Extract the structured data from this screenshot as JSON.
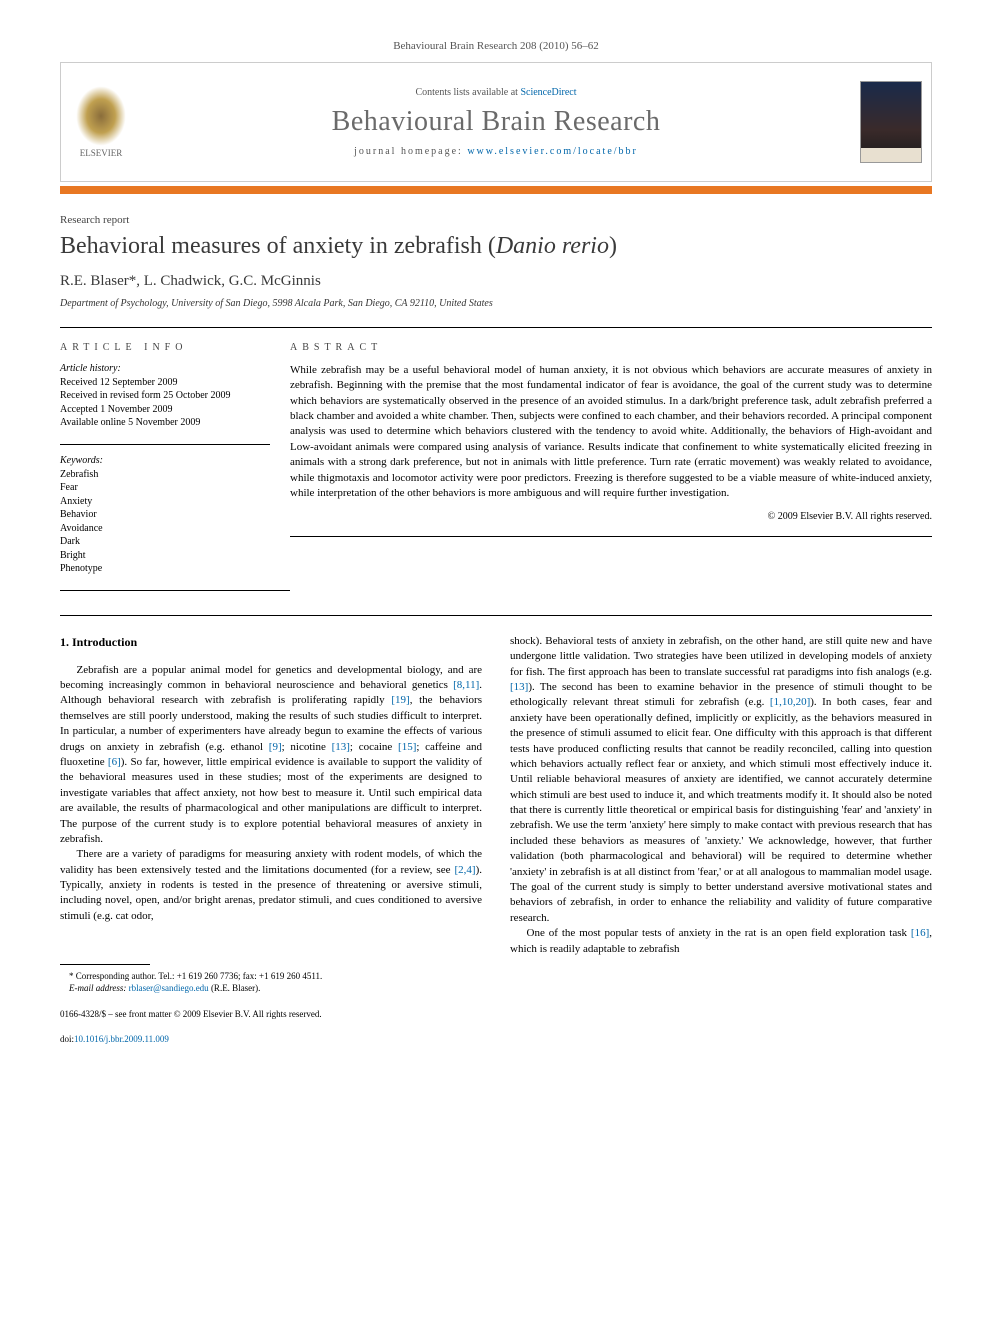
{
  "journal_header": "Behavioural Brain Research 208 (2010) 56–62",
  "header_box": {
    "elsevier": "ELSEVIER",
    "contents_prefix": "Contents lists available at ",
    "contents_link": "ScienceDirect",
    "journal_title": "Behavioural Brain Research",
    "homepage_prefix": "journal homepage: ",
    "homepage_link": "www.elsevier.com/locate/bbr"
  },
  "article_type": "Research report",
  "title_plain": "Behavioral measures of anxiety in zebrafish (",
  "title_italic": "Danio rerio",
  "title_close": ")",
  "authors": "R.E. Blaser*, L. Chadwick, G.C. McGinnis",
  "affiliation": "Department of Psychology, University of San Diego, 5998 Alcala Park, San Diego, CA 92110, United States",
  "labels": {
    "article_info": "article info",
    "abstract": "abstract",
    "history": "Article history:",
    "keywords": "Keywords:"
  },
  "history": {
    "received": "Received 12 September 2009",
    "revised": "Received in revised form 25 October 2009",
    "accepted": "Accepted 1 November 2009",
    "online": "Available online 5 November 2009"
  },
  "keywords": [
    "Zebrafish",
    "Fear",
    "Anxiety",
    "Behavior",
    "Avoidance",
    "Dark",
    "Bright",
    "Phenotype"
  ],
  "abstract": "While zebrafish may be a useful behavioral model of human anxiety, it is not obvious which behaviors are accurate measures of anxiety in zebrafish. Beginning with the premise that the most fundamental indicator of fear is avoidance, the goal of the current study was to determine which behaviors are systematically observed in the presence of an avoided stimulus. In a dark/bright preference task, adult zebrafish preferred a black chamber and avoided a white chamber. Then, subjects were confined to each chamber, and their behaviors recorded. A principal component analysis was used to determine which behaviors clustered with the tendency to avoid white. Additionally, the behaviors of High-avoidant and Low-avoidant animals were compared using analysis of variance. Results indicate that confinement to white systematically elicited freezing in animals with a strong dark preference, but not in animals with little preference. Turn rate (erratic movement) was weakly related to avoidance, while thigmotaxis and locomotor activity were poor predictors. Freezing is therefore suggested to be a viable measure of white-induced anxiety, while interpretation of the other behaviors is more ambiguous and will require further investigation.",
  "copyright": "© 2009 Elsevier B.V. All rights reserved.",
  "intro_heading": "1. Introduction",
  "col1": {
    "p1a": "Zebrafish are a popular animal model for genetics and developmental biology, and are becoming increasingly common in behavioral neuroscience and behavioral genetics ",
    "r1": "[8,11]",
    "p1b": ". Although behavioral research with zebrafish is proliferating rapidly ",
    "r2": "[19]",
    "p1c": ", the behaviors themselves are still poorly understood, making the results of such studies difficult to interpret. In particular, a number of experimenters have already begun to examine the effects of various drugs on anxiety in zebrafish (e.g. ethanol ",
    "r3": "[9]",
    "p1d": "; nicotine ",
    "r4": "[13]",
    "p1e": "; cocaine ",
    "r5": "[15]",
    "p1f": "; caffeine and fluoxetine ",
    "r6": "[6]",
    "p1g": "). So far, however, little empirical evidence is available to support the validity of the behavioral measures used in these studies; most of the experiments are designed to investigate variables that affect anxiety, not how best to measure it. Until such empirical data are available, the results of pharmacological and other manipulations are difficult to interpret. The purpose of the current study is to explore potential behavioral measures of anxiety in zebrafish.",
    "p2a": "There are a variety of paradigms for measuring anxiety with rodent models, of which the validity has been extensively tested and the limitations documented (for a review, see ",
    "r7": "[2,4]",
    "p2b": "). Typically, anxiety in rodents is tested in the presence of threatening or aversive stimuli, including novel, open, and/or bright arenas, predator stimuli, and cues conditioned to aversive stimuli (e.g. cat odor,"
  },
  "col2": {
    "p1a": "shock). Behavioral tests of anxiety in zebrafish, on the other hand, are still quite new and have undergone little validation. Two strategies have been utilized in developing models of anxiety for fish. The first approach has been to translate successful rat paradigms into fish analogs (e.g. ",
    "r1": "[13]",
    "p1b": "). The second has been to examine behavior in the presence of stimuli thought to be ethologically relevant threat stimuli for zebrafish (e.g. ",
    "r2": "[1,10,20]",
    "p1c": "). In both cases, fear and anxiety have been operationally defined, implicitly or explicitly, as the behaviors measured in the presence of stimuli assumed to elicit fear. One difficulty with this approach is that different tests have produced conflicting results that cannot be readily reconciled, calling into question which behaviors actually reflect fear or anxiety, and which stimuli most effectively induce it. Until reliable behavioral measures of anxiety are identified, we cannot accurately determine which stimuli are best used to induce it, and which treatments modify it. It should also be noted that there is currently little theoretical or empirical basis for distinguishing 'fear' and 'anxiety' in zebrafish. We use the term 'anxiety' here simply to make contact with previous research that has included these behaviors as measures of 'anxiety.' We acknowledge, however, that further validation (both pharmacological and behavioral) will be required to determine whether 'anxiety' in zebrafish is at all distinct from 'fear,' or at all analogous to mammalian model usage. The goal of the current study is simply to better understand aversive motivational states and behaviors of zebrafish, in order to enhance the reliability and validity of future comparative research.",
    "p2a": "One of the most popular tests of anxiety in the rat is an open field exploration task ",
    "r3": "[16]",
    "p2b": ", which is readily adaptable to zebrafish"
  },
  "footnote": {
    "line1": "* Corresponding author. Tel.: +1 619 260 7736; fax: +1 619 260 4511.",
    "email_label": "E-mail address: ",
    "email": "rblaser@sandiego.edu",
    "email_suffix": " (R.E. Blaser)."
  },
  "footer": {
    "line1": "0166-4328/$ – see front matter © 2009 Elsevier B.V. All rights reserved.",
    "doi_prefix": "doi:",
    "doi": "10.1016/j.bbr.2009.11.009"
  },
  "colors": {
    "orange_bar": "#e87722",
    "link": "#0066aa",
    "journal_title": "#6a6a6a",
    "text": "#000000",
    "border": "#cccccc"
  }
}
